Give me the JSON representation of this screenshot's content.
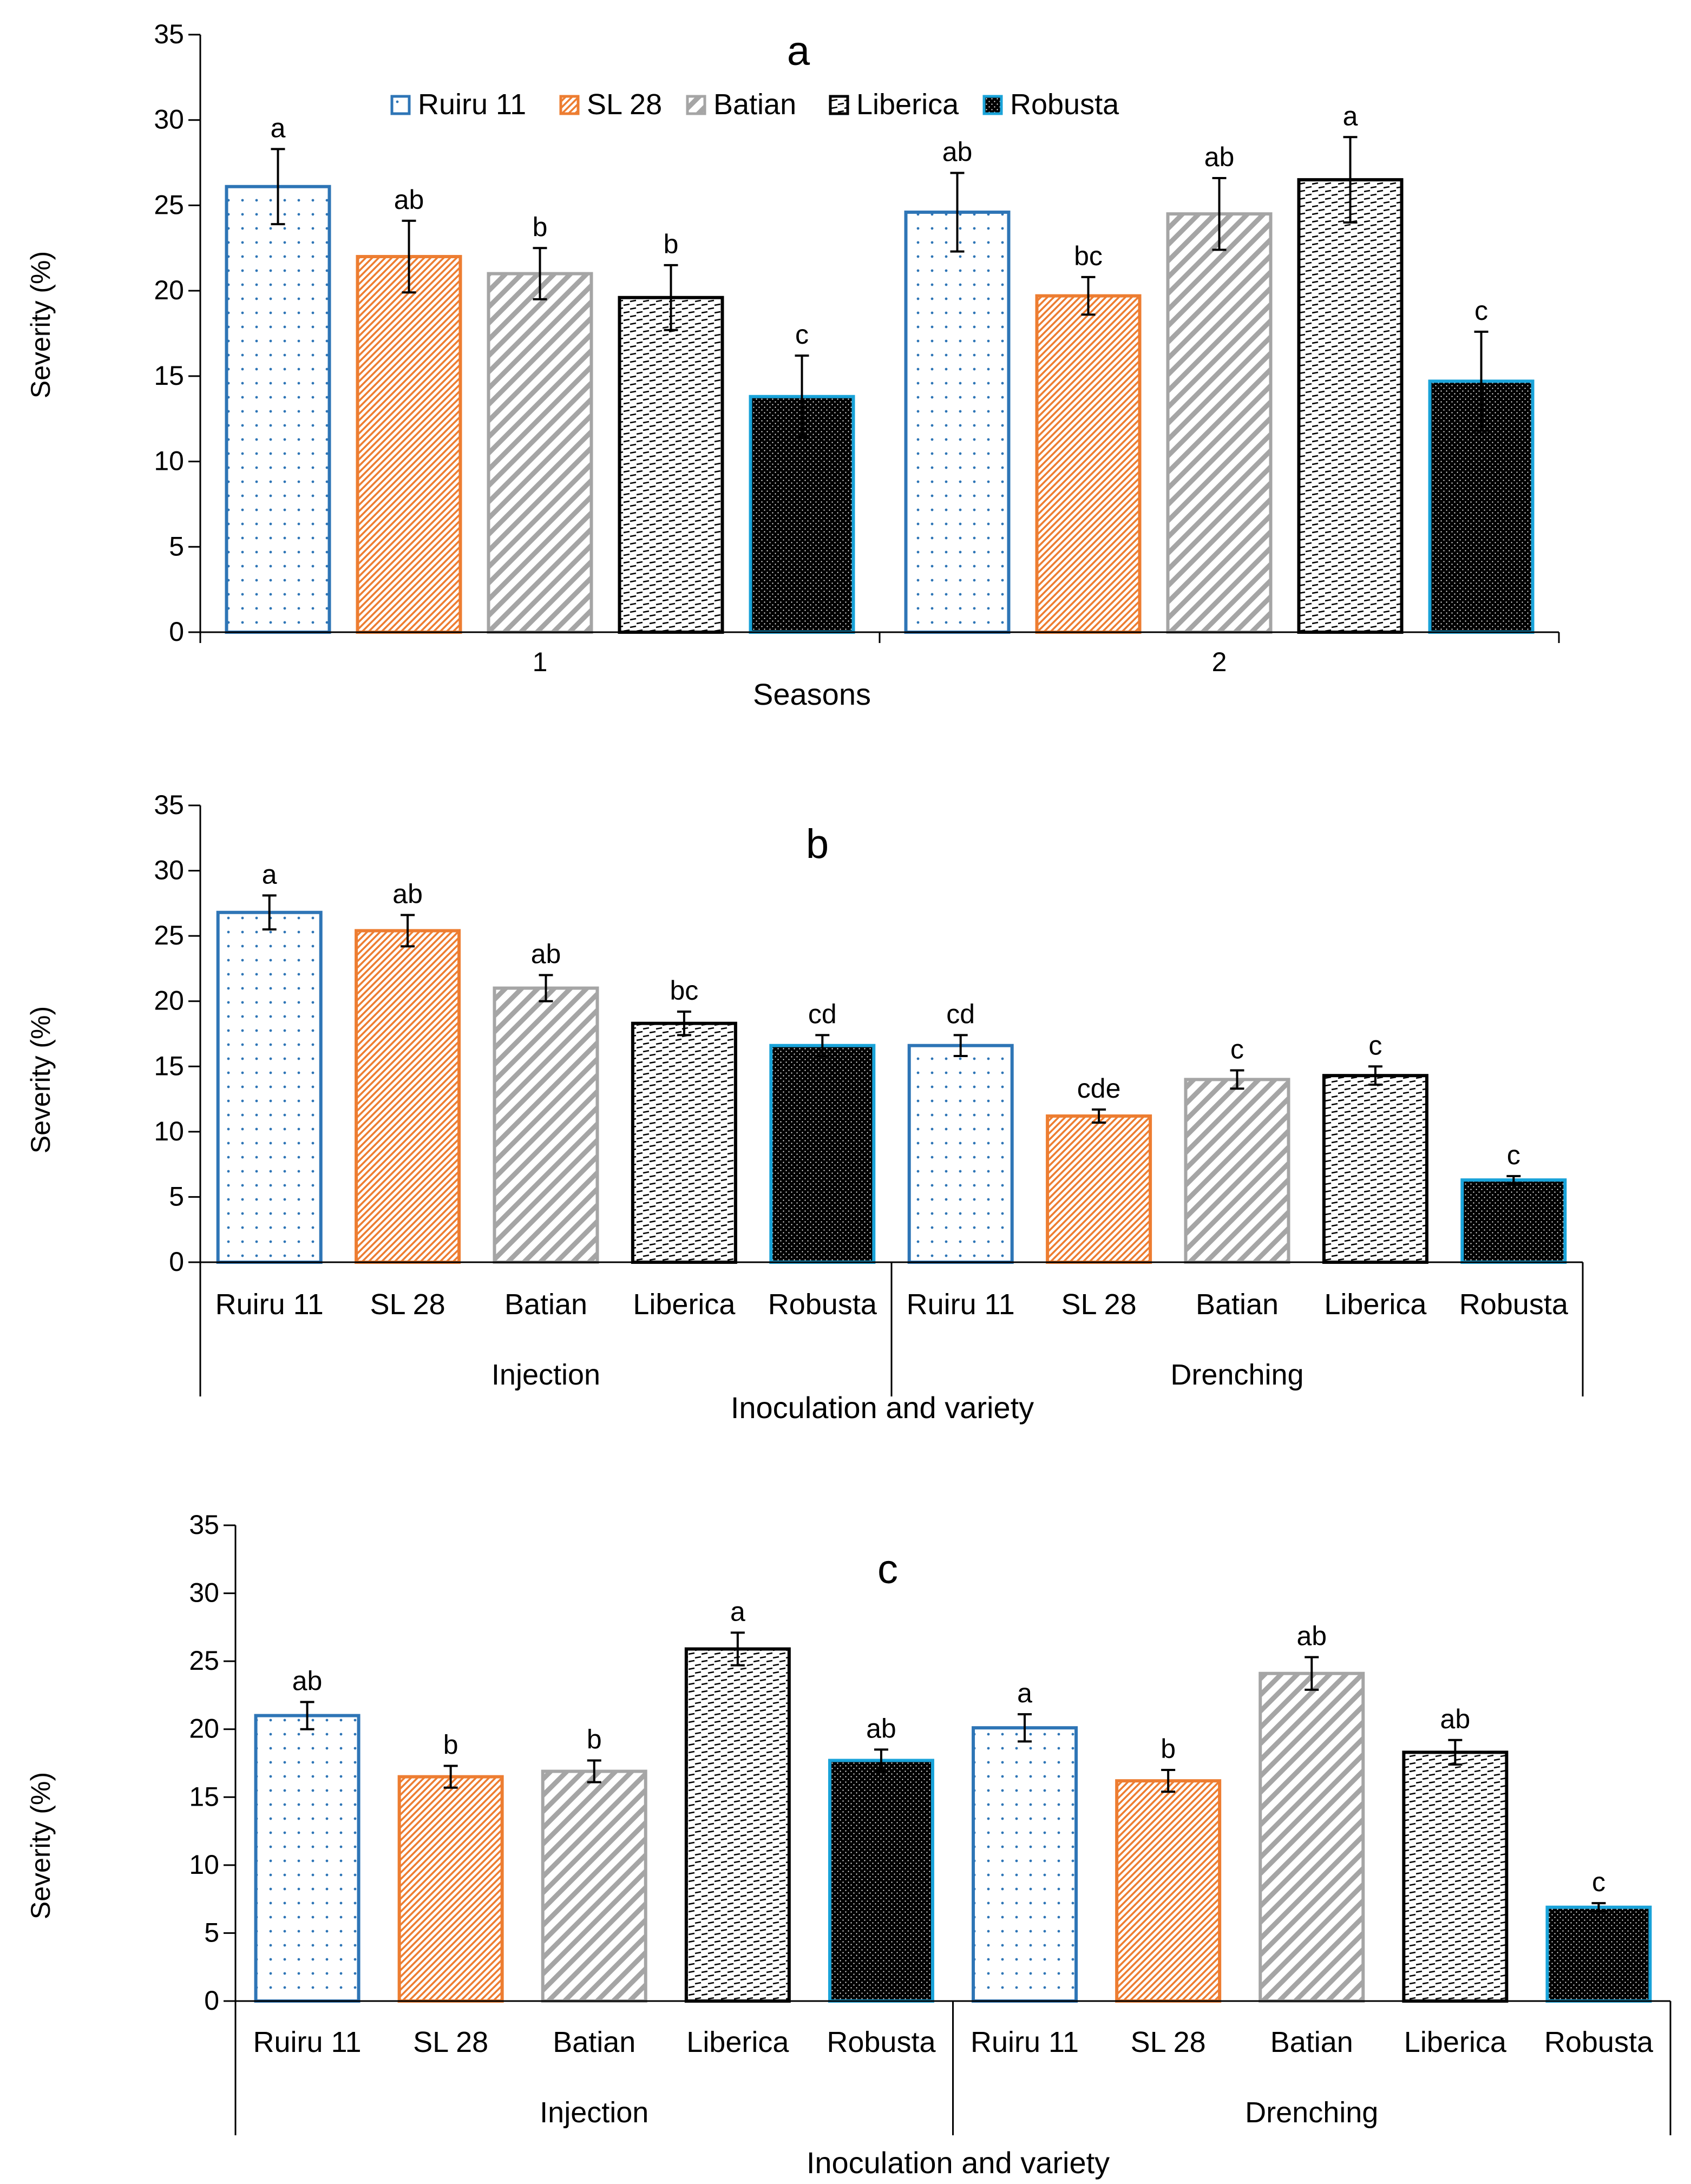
{
  "colors": {
    "ruiru": "#2e75b6",
    "sl28": "#ed7d31",
    "batian": "#a5a5a5",
    "liberica": "#000000",
    "robusta_fill": "#000000",
    "robusta_edge": "#1aa3d9",
    "axis": "#000000"
  },
  "legend": [
    {
      "name": "Ruiru 11",
      "pattern": "dots"
    },
    {
      "name": "SL 28",
      "pattern": "diag-fine"
    },
    {
      "name": "Batian",
      "pattern": "diag-wide"
    },
    {
      "name": "Liberica",
      "pattern": "dash"
    },
    {
      "name": "Robusta",
      "pattern": "dense"
    }
  ],
  "chart_data": [
    {
      "type": "bar",
      "title": "a",
      "ylabel": "Severity (%)",
      "xlabel": "Seasons",
      "ylim": [
        0,
        35
      ],
      "yticks": [
        "0",
        "5",
        "10",
        "15",
        "20",
        "25",
        "30",
        "35"
      ],
      "groups": [
        "1",
        "2"
      ],
      "series": [
        {
          "name": "Ruiru 11",
          "values": [
            26.1,
            24.6
          ],
          "errors": [
            2.2,
            2.3
          ],
          "letters": [
            "a",
            "ab"
          ]
        },
        {
          "name": "SL 28",
          "values": [
            22.0,
            19.7
          ],
          "errors": [
            2.1,
            1.1
          ],
          "letters": [
            "ab",
            "bc"
          ]
        },
        {
          "name": "Batian",
          "values": [
            21.0,
            24.5
          ],
          "errors": [
            1.5,
            2.1
          ],
          "letters": [
            "b",
            "ab"
          ]
        },
        {
          "name": "Liberica",
          "values": [
            19.6,
            26.5
          ],
          "errors": [
            1.9,
            2.5
          ],
          "letters": [
            "b",
            "a"
          ]
        },
        {
          "name": "Robusta",
          "values": [
            13.8,
            14.7
          ],
          "errors": [
            2.4,
            2.9
          ],
          "letters": [
            "c",
            "c"
          ]
        }
      ]
    },
    {
      "type": "bar",
      "title": "b",
      "ylabel": "Severity (%)",
      "xlabel": "Inoculation and variety",
      "ylim": [
        0,
        35
      ],
      "yticks": [
        "0",
        "5",
        "10",
        "15",
        "20",
        "25",
        "30",
        "35"
      ],
      "groups": [
        "Injection",
        "Drenching"
      ],
      "categories": [
        "Ruiru 11",
        "SL 28",
        "Batian",
        "Liberica",
        "Robusta"
      ],
      "series": [
        {
          "name": "Injection",
          "values": [
            26.8,
            25.4,
            21.0,
            18.3,
            16.6
          ],
          "errors": [
            1.3,
            1.2,
            1.0,
            0.9,
            0.8
          ],
          "letters": [
            "a",
            "ab",
            "ab",
            "bc",
            "cd"
          ]
        },
        {
          "name": "Drenching",
          "values": [
            16.6,
            11.2,
            14.0,
            14.3,
            6.3
          ],
          "errors": [
            0.8,
            0.5,
            0.7,
            0.7,
            0.3
          ],
          "letters": [
            "cd",
            "cde",
            "c",
            "c",
            "c"
          ]
        }
      ]
    },
    {
      "type": "bar",
      "title": "c",
      "ylabel": "Severity (%)",
      "xlabel": "Inoculation and variety",
      "ylim": [
        0,
        35
      ],
      "yticks": [
        "0",
        "5",
        "10",
        "15",
        "20",
        "25",
        "30",
        "35"
      ],
      "groups": [
        "Injection",
        "Drenching"
      ],
      "categories": [
        "Ruiru 11",
        "SL 28",
        "Batian",
        "Liberica",
        "Robusta"
      ],
      "series": [
        {
          "name": "Injection",
          "values": [
            21.0,
            16.5,
            16.9,
            25.9,
            17.7
          ],
          "errors": [
            1.0,
            0.8,
            0.8,
            1.2,
            0.8
          ],
          "letters": [
            "ab",
            "b",
            "b",
            "a",
            "ab"
          ]
        },
        {
          "name": "Drenching",
          "values": [
            20.1,
            16.2,
            24.1,
            18.3,
            6.9
          ],
          "errors": [
            1.0,
            0.8,
            1.2,
            0.9,
            0.3
          ],
          "letters": [
            "a",
            "b",
            "ab",
            "ab",
            "c"
          ]
        }
      ]
    }
  ]
}
